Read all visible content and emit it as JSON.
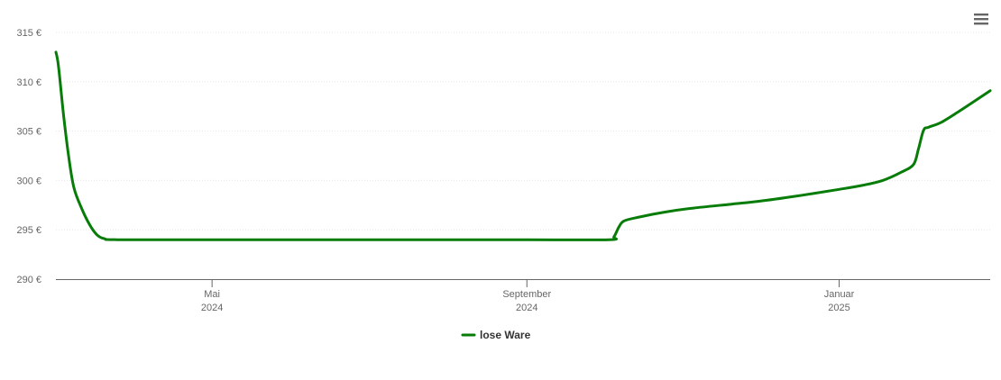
{
  "chart_data": {
    "type": "line",
    "title": "",
    "xlabel": "",
    "ylabel": "",
    "ylim": [
      290,
      315
    ],
    "y_ticks": [
      {
        "value": 290,
        "label": "290 €"
      },
      {
        "value": 295,
        "label": "295 €"
      },
      {
        "value": 300,
        "label": "300 €"
      },
      {
        "value": 305,
        "label": "305 €"
      },
      {
        "value": 310,
        "label": "310 €"
      },
      {
        "value": 315,
        "label": "315 €"
      }
    ],
    "xlim": [
      "2024-03-01",
      "2025-03-01"
    ],
    "x_ticks": [
      {
        "date": "2024-05-01",
        "month": "Mai",
        "year": "2024"
      },
      {
        "date": "2024-09-01",
        "month": "September",
        "year": "2024"
      },
      {
        "date": "2025-01-01",
        "month": "Januar",
        "year": "2025"
      }
    ],
    "grid": true,
    "legend_position": "bottom-center",
    "series": [
      {
        "name": "lose Ware",
        "color": "#087c08",
        "points": [
          {
            "x": "2024-03-01",
            "y": 313.0
          },
          {
            "x": "2024-03-02",
            "y": 311.6
          },
          {
            "x": "2024-03-04",
            "y": 306.6
          },
          {
            "x": "2024-03-06",
            "y": 302.4
          },
          {
            "x": "2024-03-08",
            "y": 299.3
          },
          {
            "x": "2024-03-11",
            "y": 297.2
          },
          {
            "x": "2024-03-14",
            "y": 295.6
          },
          {
            "x": "2024-03-17",
            "y": 294.5
          },
          {
            "x": "2024-03-20",
            "y": 294.1
          },
          {
            "x": "2024-03-25",
            "y": 294.0
          },
          {
            "x": "2024-05-01",
            "y": 294.0
          },
          {
            "x": "2024-07-01",
            "y": 294.0
          },
          {
            "x": "2024-09-01",
            "y": 294.0
          },
          {
            "x": "2024-10-03",
            "y": 294.0
          },
          {
            "x": "2024-10-05",
            "y": 294.3
          },
          {
            "x": "2024-10-07",
            "y": 295.3
          },
          {
            "x": "2024-10-09",
            "y": 295.9
          },
          {
            "x": "2024-10-15",
            "y": 296.3
          },
          {
            "x": "2024-10-25",
            "y": 296.8
          },
          {
            "x": "2024-11-05",
            "y": 297.2
          },
          {
            "x": "2024-11-20",
            "y": 297.6
          },
          {
            "x": "2024-12-01",
            "y": 297.9
          },
          {
            "x": "2024-12-15",
            "y": 298.4
          },
          {
            "x": "2025-01-01",
            "y": 299.1
          },
          {
            "x": "2025-01-10",
            "y": 299.5
          },
          {
            "x": "2025-01-18",
            "y": 300.0
          },
          {
            "x": "2025-01-25",
            "y": 300.8
          },
          {
            "x": "2025-01-30",
            "y": 301.6
          },
          {
            "x": "2025-02-01",
            "y": 303.2
          },
          {
            "x": "2025-02-03",
            "y": 305.1
          },
          {
            "x": "2025-02-05",
            "y": 305.4
          },
          {
            "x": "2025-02-10",
            "y": 305.9
          },
          {
            "x": "2025-02-18",
            "y": 307.2
          },
          {
            "x": "2025-03-01",
            "y": 309.1
          }
        ]
      }
    ]
  },
  "menu": {
    "icon": "hamburger-menu-icon"
  }
}
